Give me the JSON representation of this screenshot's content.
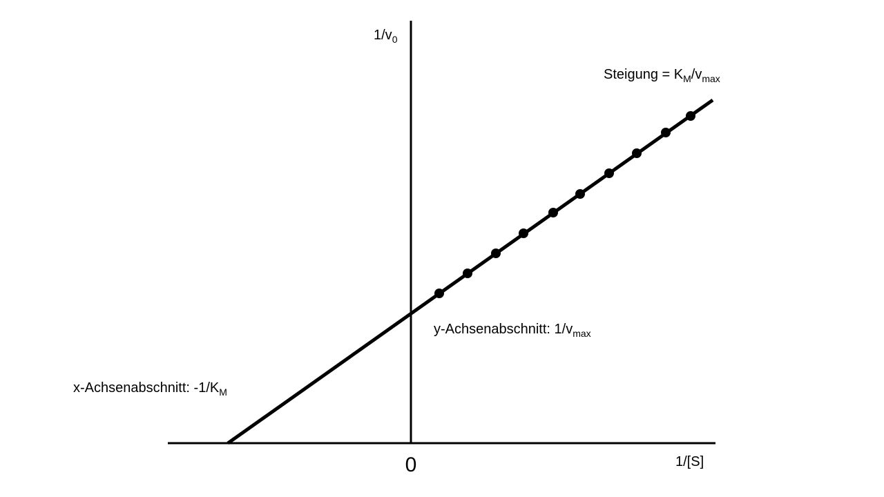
{
  "axes": {
    "y_label": [
      {
        "text": "1/v"
      },
      {
        "sub": "0"
      }
    ],
    "x_label": "1/[S]",
    "origin": "0"
  },
  "annotations": {
    "slope": [
      {
        "text": "Steigung = K"
      },
      {
        "sub": "M"
      },
      {
        "text": "/v"
      },
      {
        "sub": "max"
      }
    ],
    "y_intercept": [
      {
        "text": "y-Achsenabschnitt: 1/v"
      },
      {
        "sub": "max"
      }
    ],
    "x_intercept": [
      {
        "text": "x-Achsenabschnitt: -1/K"
      },
      {
        "sub": "M"
      }
    ]
  }
}
